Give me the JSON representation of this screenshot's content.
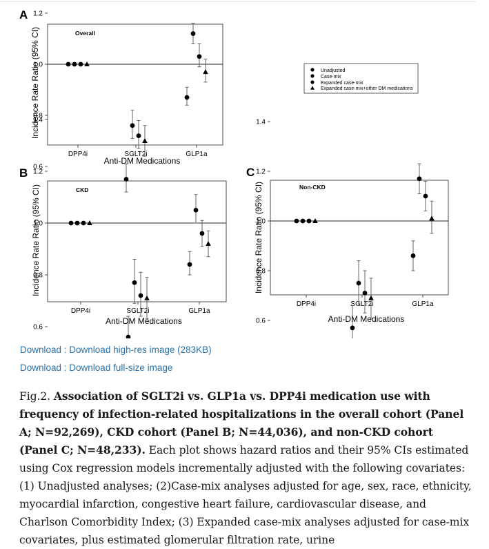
{
  "figure": {
    "legend": [
      "Unadjusted",
      "Case-mix",
      "Expanded case-mix",
      "Expanded case-mix+other DM medications"
    ]
  },
  "chart_data": [
    {
      "type": "scatter",
      "panel_letter": "A",
      "title": "Overall",
      "xlabel": "Anti-DM Medications",
      "ylabel": "Incidence Rate Ratio (95% CI)",
      "categories": [
        "DPP4i",
        "SGLT2i",
        "GLP1a"
      ],
      "y_ticks": [
        "0.6",
        "0.8",
        "1.0",
        "1.2",
        "1.4"
      ],
      "ylim": [
        0.5,
        1.5
      ],
      "series": [
        {
          "name": "Unadjusted",
          "marker": "circle",
          "values": [
            1.0,
            0.55,
            0.87
          ],
          "ci": [
            [
              1.0,
              1.0
            ],
            [
              0.5,
              0.61
            ],
            [
              0.84,
              0.91
            ]
          ]
        },
        {
          "name": "Case-mix",
          "marker": "circle",
          "values": [
            1.0,
            0.76,
            1.12
          ],
          "ci": [
            [
              1.0,
              1.0
            ],
            [
              0.71,
              0.82
            ],
            [
              1.08,
              1.16
            ]
          ]
        },
        {
          "name": "Expanded case-mix",
          "marker": "circle",
          "values": [
            1.0,
            0.72,
            1.03
          ],
          "ci": [
            [
              1.0,
              1.0
            ],
            [
              0.67,
              0.78
            ],
            [
              0.99,
              1.08
            ]
          ]
        },
        {
          "name": "Expanded case-mix+other DM medications",
          "marker": "triangle",
          "values": [
            1.0,
            0.7,
            0.97
          ],
          "ci": [
            [
              1.0,
              1.0
            ],
            [
              0.64,
              0.76
            ],
            [
              0.93,
              1.02
            ]
          ]
        }
      ]
    },
    {
      "type": "scatter",
      "panel_letter": "B",
      "title": "CKD",
      "xlabel": "Anti-DM Medications",
      "ylabel": "Incidence Rate Ratio (95% CI)",
      "categories": [
        "DPP4i",
        "SGLT2i",
        "GLP1a"
      ],
      "y_ticks": [
        "0.6",
        "0.8",
        "1.0",
        "1.2",
        "1.4"
      ],
      "ylim": [
        0.5,
        1.5
      ],
      "series": [
        {
          "name": "Unadjusted",
          "marker": "circle",
          "values": [
            1.0,
            0.56,
            0.84
          ],
          "ci": [
            [
              1.0,
              1.0
            ],
            [
              0.49,
              0.64
            ],
            [
              0.8,
              0.89
            ]
          ]
        },
        {
          "name": "Case-mix",
          "marker": "circle",
          "values": [
            1.0,
            0.77,
            1.05
          ],
          "ci": [
            [
              1.0,
              1.0
            ],
            [
              0.69,
              0.86
            ],
            [
              1.0,
              1.11
            ]
          ]
        },
        {
          "name": "Expanded case-mix",
          "marker": "circle",
          "values": [
            1.0,
            0.72,
            0.96
          ],
          "ci": [
            [
              1.0,
              1.0
            ],
            [
              0.64,
              0.81
            ],
            [
              0.91,
              1.01
            ]
          ]
        },
        {
          "name": "Expanded case-mix+other DM medications",
          "marker": "triangle",
          "values": [
            1.0,
            0.71,
            0.92
          ],
          "ci": [
            [
              1.0,
              1.0
            ],
            [
              0.63,
              0.79
            ],
            [
              0.87,
              0.97
            ]
          ]
        }
      ]
    },
    {
      "type": "scatter",
      "panel_letter": "C",
      "title": "Non-CKD",
      "xlabel": "Anti-DM Medications",
      "ylabel": "Incidence Rate Ratio (95% CI)",
      "categories": [
        "DPP4i",
        "SGLT2i",
        "GLP1a"
      ],
      "y_ticks": [
        "0.6",
        "0.8",
        "1.0",
        "1.2",
        "1.4"
      ],
      "ylim": [
        0.5,
        1.5
      ],
      "series": [
        {
          "name": "Unadjusted",
          "marker": "circle",
          "values": [
            1.0,
            0.57,
            0.86
          ],
          "ci": [
            [
              1.0,
              1.0
            ],
            [
              0.48,
              0.66
            ],
            [
              0.8,
              0.92
            ]
          ]
        },
        {
          "name": "Case-mix",
          "marker": "circle",
          "values": [
            1.0,
            0.75,
            1.17
          ],
          "ci": [
            [
              1.0,
              1.0
            ],
            [
              0.66,
              0.84
            ],
            [
              1.11,
              1.23
            ]
          ]
        },
        {
          "name": "Expanded case-mix",
          "marker": "circle",
          "values": [
            1.0,
            0.71,
            1.1
          ],
          "ci": [
            [
              1.0,
              1.0
            ],
            [
              0.63,
              0.8
            ],
            [
              1.04,
              1.16
            ]
          ]
        },
        {
          "name": "Expanded case-mix+other DM medications",
          "marker": "triangle",
          "values": [
            1.0,
            0.69,
            1.01
          ],
          "ci": [
            [
              1.0,
              1.0
            ],
            [
              0.61,
              0.77
            ],
            [
              0.95,
              1.08
            ]
          ]
        }
      ]
    }
  ],
  "links": {
    "highres": "Download : Download high-res image (283KB)",
    "fullsize": "Download : Download full-size image"
  },
  "caption": {
    "label": "Fig.2. ",
    "bold": "Association of SGLT2i vs. GLP1a vs. DPP4i medication use with frequency of infection-related hospitalizations in the overall cohort (Panel A; N=92,269), CKD cohort (Panel B; N=44,036), and non-CKD cohort (Panel C; N=48,233).",
    "body": " Each plot shows hazard ratios and their 95% CIs estimated using Cox regression models incrementally adjusted with the following covariates: (1) Unadjusted analyses; (2)Case-mix analyses adjusted for age, sex, race, ethnicity, myocardial infarction, congestive heart failure, cardiovascular disease, and Charlson Comorbidity Index; (3) Expanded case-mix analyses adjusted for case-mix covariates, plus estimated glomerular filtration rate, urine"
  }
}
